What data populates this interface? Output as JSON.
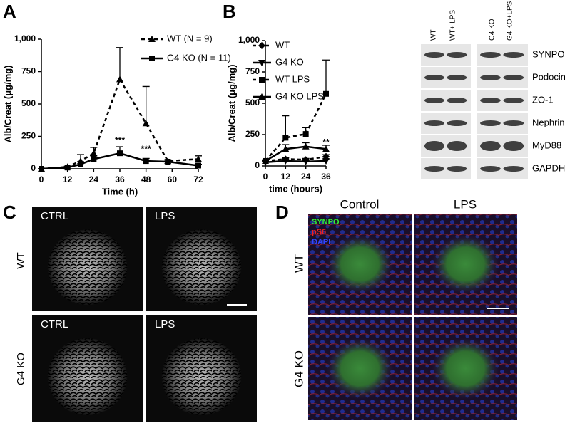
{
  "panel_letters": [
    "A",
    "B",
    "C",
    "D"
  ],
  "chart_data": [
    {
      "type": "line",
      "x": [
        0,
        12,
        18,
        24,
        36,
        48,
        58,
        72
      ],
      "xlim": [
        0,
        72
      ],
      "xticks": [
        0,
        12,
        24,
        36,
        48,
        60,
        72
      ],
      "ylim": [
        0,
        1000
      ],
      "yticks": [
        0,
        250,
        500,
        750,
        {
          "value": 1000,
          "label": "1,000"
        }
      ],
      "x_label": "Time (h)",
      "y_label": "Alb/Creat (μg/mg)",
      "series": [
        {
          "name": "WT (N = 9)",
          "color": "#000000",
          "dash": true,
          "marker": "triangle",
          "values": [
            0,
            15,
            60,
            120,
            690,
            350,
            60,
            75
          ],
          "errors": [
            0,
            5,
            50,
            45,
            245,
            285,
            10,
            25
          ]
        },
        {
          "name": "G4 KO (N = 11)",
          "color": "#000000",
          "dash": false,
          "marker": "square",
          "values": [
            0,
            10,
            35,
            75,
            120,
            60,
            55,
            25
          ],
          "errors": [
            0,
            5,
            20,
            25,
            50,
            20,
            5,
            10
          ]
        }
      ],
      "annotations": [
        {
          "text": "***",
          "x": 36,
          "y": 215
        },
        {
          "text": "***",
          "x": 48,
          "y": 150
        }
      ]
    },
    {
      "type": "line",
      "x": [
        0,
        12,
        24,
        36
      ],
      "xlim": [
        0,
        36
      ],
      "xticks": [
        0,
        12,
        24,
        36
      ],
      "ylim": [
        0,
        1000
      ],
      "yticks": [
        0,
        250,
        500,
        750,
        {
          "value": 1000,
          "label": "1,000"
        }
      ],
      "x_label": "time (hours)",
      "y_label": "Alb/Creat (μg/mg)",
      "series": [
        {
          "name": "WT",
          "color": "#000000",
          "dash": true,
          "marker": "diamond",
          "values": [
            40,
            55,
            50,
            75
          ],
          "errors": [
            5,
            10,
            10,
            15
          ]
        },
        {
          "name": "G4 KO",
          "color": "#000000",
          "dash": false,
          "marker": "triangle-down",
          "values": [
            30,
            40,
            35,
            40
          ],
          "errors": [
            5,
            10,
            10,
            10
          ]
        },
        {
          "name": "WT LPS",
          "color": "#000000",
          "dash": true,
          "marker": "square",
          "values": [
            40,
            225,
            255,
            575
          ],
          "errors": [
            5,
            175,
            50,
            270
          ]
        },
        {
          "name": "G4 KO LPS",
          "color": "#000000",
          "dash": false,
          "marker": "triangle",
          "values": [
            40,
            135,
            155,
            135
          ],
          "errors": [
            5,
            35,
            30,
            30
          ]
        }
      ],
      "annotations": [
        {
          "text": "**",
          "x": 36,
          "y": 185
        }
      ]
    }
  ],
  "blot": {
    "columns": [
      "WT",
      "WT+ LPS",
      "G4 KO",
      "G4 KO+LPS"
    ],
    "rows": [
      "SYNPO",
      "Podocin",
      "ZO-1",
      "Nephrin",
      "MyD88",
      "GAPDH"
    ]
  },
  "panel_c": {
    "conditions": [
      "CTRL",
      "LPS",
      "CTRL",
      "LPS"
    ],
    "genotypes": [
      "WT",
      "G4 KO"
    ]
  },
  "panel_d": {
    "conditions": [
      "Control",
      "LPS"
    ],
    "genotypes": [
      "WT",
      "G4 KO"
    ],
    "stains": [
      {
        "text": "SYNPO",
        "color": "#33ee33"
      },
      {
        "text": "pS6",
        "color": "#ee2222"
      },
      {
        "text": "DAPI",
        "color": "#3344ff"
      }
    ]
  }
}
